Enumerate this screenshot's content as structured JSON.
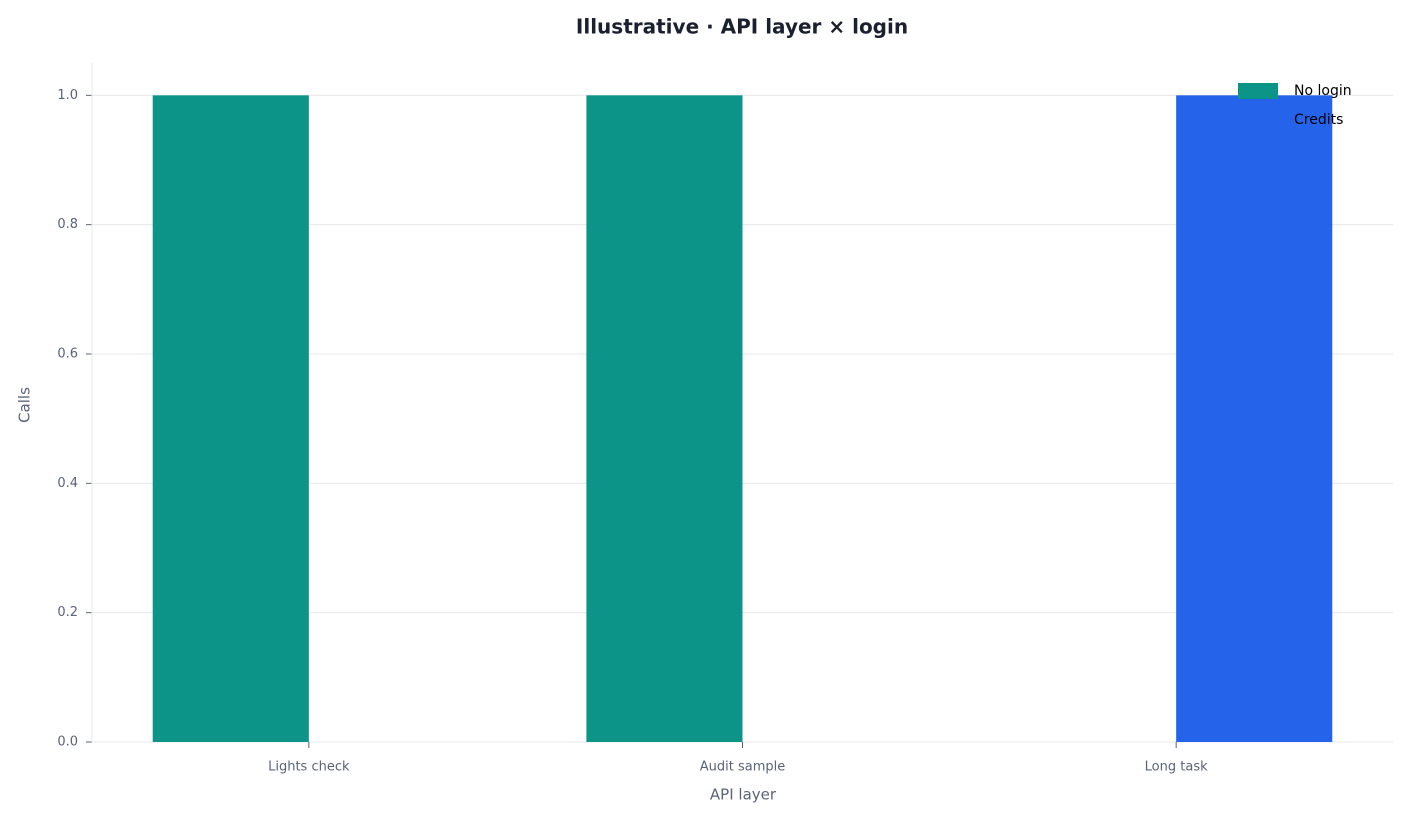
{
  "chart_data": {
    "type": "bar",
    "title": "Illustrative · API layer × login",
    "xlabel": "API layer",
    "ylabel": "Calls",
    "categories": [
      "Lights check",
      "Audit sample",
      "Long task"
    ],
    "series": [
      {
        "name": "No login",
        "color": "#0d9488",
        "values": [
          1,
          1,
          0
        ]
      },
      {
        "name": "Credits",
        "color": "#2563eb",
        "values": [
          0,
          0,
          1
        ]
      }
    ],
    "ylim": [
      0,
      1.05
    ],
    "yticks": [
      {
        "value": 0,
        "label": "0.0"
      },
      {
        "value": 0.2,
        "label": "0.2"
      },
      {
        "value": 0.4,
        "label": "0.4"
      },
      {
        "value": 0.6,
        "label": "0.6"
      },
      {
        "value": 0.8,
        "label": "0.8"
      },
      {
        "value": 1,
        "label": "1.0"
      }
    ],
    "grid": true,
    "legend": "upper right"
  }
}
